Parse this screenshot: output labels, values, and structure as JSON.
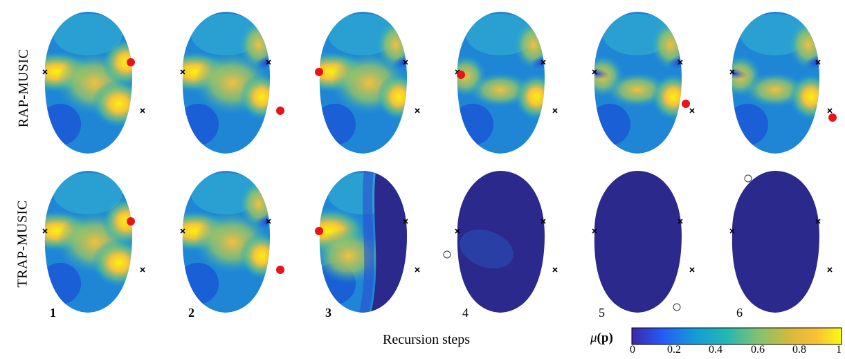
{
  "figure": {
    "row_labels": [
      "RAP-MUSIC",
      "TRAP-MUSIC"
    ],
    "steps": [
      "1",
      "2",
      "3",
      "4",
      "5",
      "6"
    ],
    "bold_steps": [
      "1",
      "2",
      "3"
    ],
    "xlabel": "Recursion steps"
  },
  "colorbar": {
    "title_symbol": "μ",
    "title_arg": "(p)",
    "ticks": [
      "0",
      "0.2",
      "0.4",
      "0.6",
      "0.8",
      "1"
    ],
    "colormap": [
      "#3e26a8",
      "#2658f5",
      "#159bd8",
      "#23b7b2",
      "#7fc271",
      "#d5b93d",
      "#fbbf36",
      "#f9fb0e"
    ]
  },
  "colors": {
    "true_source_marker": "black-x",
    "found_source": "#e8141b",
    "found_source_failed": "#ffffff",
    "low_value": "#2b2a8c"
  }
}
